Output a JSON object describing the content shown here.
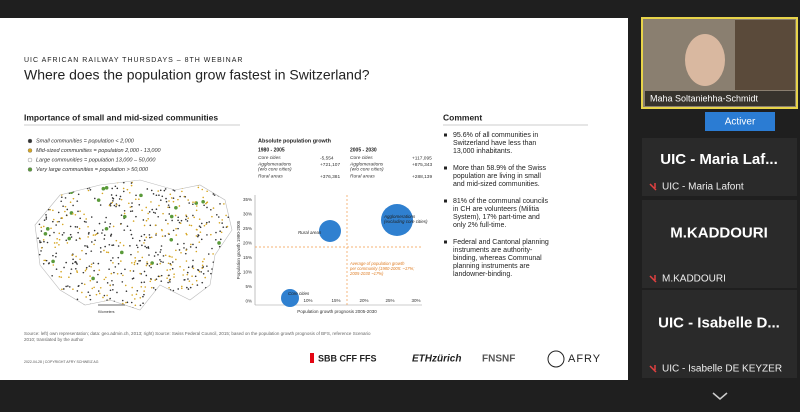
{
  "slide": {
    "header": "UIC AFRICAN RAILWAY THURSDAYS – 8TH WEBINAR",
    "title": "Where does the population grow fastest in Switzerland?",
    "left_heading": "Importance of small and mid-sized communities",
    "legend": [
      "Small communities = population < 2,000",
      "Mid-sized communities = population 2,000 - 13,000",
      "Large communities = population 13,000 – 50,000",
      "Very large communities = population > 50,000"
    ],
    "map_scale": "Kilometers",
    "table": {
      "heading": "Absolute population growth",
      "periods": [
        "1980 - 2005",
        "2005 - 2030"
      ],
      "rows": [
        [
          "Core cities",
          "-5,554",
          "+117,095"
        ],
        [
          "Agglomerations\n(w/o core cities)",
          "+721,107",
          "+875,343"
        ],
        [
          "Rural areas",
          "+376,381",
          "+288,139"
        ]
      ]
    },
    "chart": {
      "y_label": "Population growth 1980-2005",
      "x_label": "Population growth prognosis 2005-2030",
      "yticks": [
        "35%",
        "30%",
        "25%",
        "20%",
        "15%",
        "10%",
        "5%",
        "0%"
      ],
      "xticks": [
        "10%",
        "15%",
        "20%",
        "25%",
        "30%"
      ],
      "bubbles": [
        "Core cities",
        "Rural areas",
        "Agglomerations\n(excluding core cities)"
      ],
      "annotation": [
        "Average of population growth",
        "per community (1980-2005: ~17%;",
        "2005-2030 ~17%)"
      ]
    },
    "comment_heading": "Comment",
    "comments": [
      [
        "95.6% of all communities in",
        "Switzerland have less than",
        "13,000 inhabitants."
      ],
      [
        "More than 58.9% of the Swiss",
        "population are living in small",
        "and mid-sized communities."
      ],
      [
        "81% of the communal councils",
        "in CH are volunteers (Militia",
        "System), 17% part-time and",
        "only 2% full-time."
      ],
      [
        "Federal and Cantonal planning",
        "instruments are authority-",
        "binding, whereas Communal",
        "planning instruments are",
        "landowner-binding."
      ]
    ],
    "source": [
      "Source: left) own representation; data: geo.admin.ch, 2013; right) Source: Swiss Federal Council, 2015; based on the population growth prognosis of BFS, reference Scenario",
      "2010; translated by the author"
    ],
    "footer": "2022-04-28 | COPYRIGHT AFRY SCHWEIZ AG",
    "logos": [
      "SBB CFF FFS",
      "ETHzürich",
      "FNSNF",
      "AFRY"
    ]
  },
  "participants": [
    {
      "name": "Maha Soltaniehha-Schmidt"
    },
    {
      "big": "UIC - Maria Laf...",
      "name": "UIC - Maria Lafont"
    },
    {
      "big": "M.KADDOURI",
      "name": "M.KADDOURI"
    },
    {
      "big": "UIC - Isabelle D...",
      "name": "UIC - Isabelle DE KEYZER"
    }
  ],
  "button": "Activer"
}
